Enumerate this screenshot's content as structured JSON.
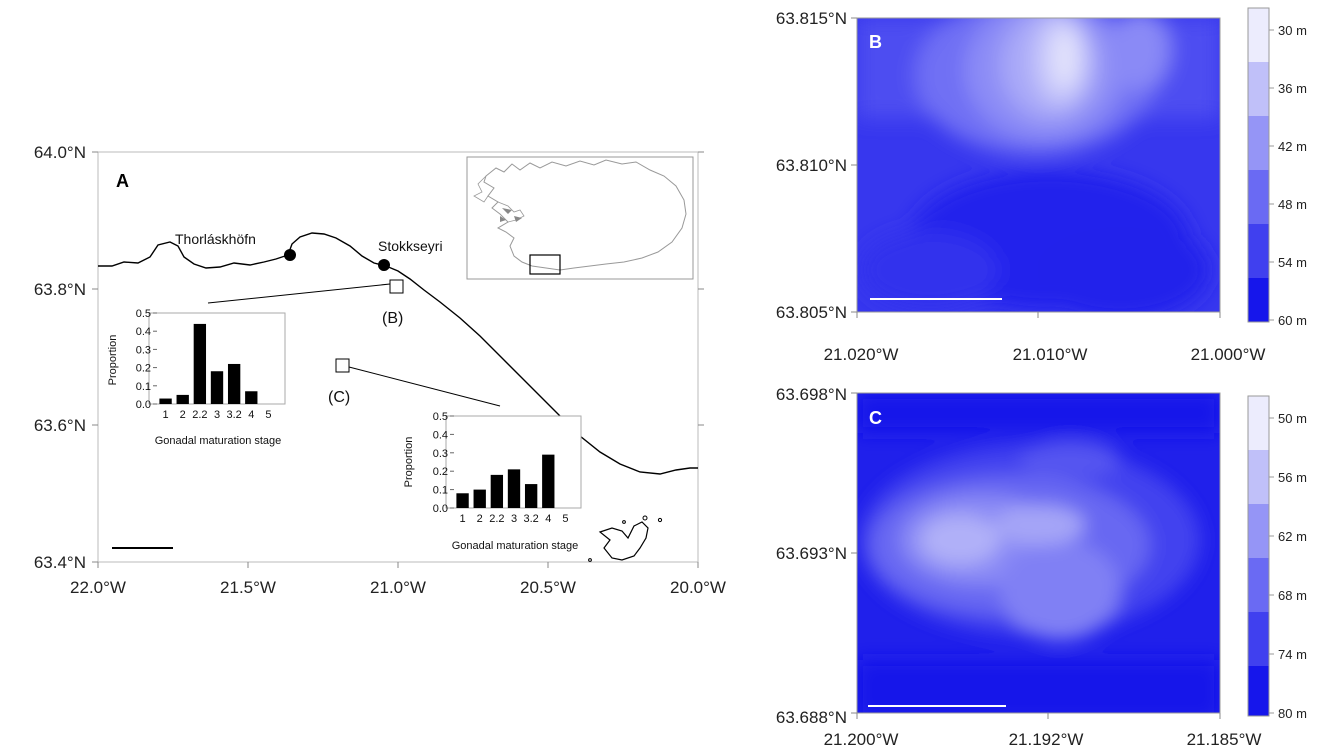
{
  "panel_a": {
    "label": "A",
    "lat_ticks": [
      "64.0°N",
      "63.8°N",
      "63.6°N",
      "63.4°N"
    ],
    "lon_ticks": [
      "22.0°W",
      "21.5°W",
      "21.0°W",
      "20.5°W",
      "20.0°W"
    ],
    "places": [
      {
        "name": "Thorláskhöfn",
        "lon": -21.36,
        "lat": 63.853
      },
      {
        "name": "Stokkseyri",
        "lon": -21.05,
        "lat": 63.835
      }
    ],
    "sites": [
      {
        "label": "(B)",
        "lon": -21.01,
        "lat": 63.805
      },
      {
        "label": "(C)",
        "lon": -21.19,
        "lat": 63.694
      }
    ]
  },
  "panel_b": {
    "label": "B",
    "lat_ticks": [
      "63.815°N",
      "63.810°N",
      "63.805°N"
    ],
    "lon_ticks": [
      "21.020°W",
      "21.010°W",
      "21.000°W"
    ],
    "colorbar": [
      "30 m",
      "36 m",
      "42 m",
      "48 m",
      "54 m",
      "60 m"
    ]
  },
  "panel_c": {
    "label": "C",
    "lat_ticks": [
      "63.698°N",
      "63.693°N",
      "63.688°N"
    ],
    "lon_ticks": [
      "21.200°W",
      "21.192°W",
      "21.185°W"
    ],
    "colorbar": [
      "50 m",
      "56 m",
      "62 m",
      "68 m",
      "74 m",
      "80 m"
    ]
  },
  "colors": {
    "deep": "#1a1aee",
    "shallow": "#e9e9fb",
    "bars": "#000000"
  },
  "chart_data": [
    {
      "type": "bar",
      "site": "(B)",
      "categories": [
        "1",
        "2",
        "2.2",
        "3",
        "3.2",
        "4",
        "5"
      ],
      "tick_labels": [
        "1",
        "2",
        "2.2",
        "3",
        "3.2",
        "4",
        "5"
      ],
      "values": [
        0.03,
        0.05,
        0.44,
        0.18,
        0.22,
        0.07,
        0
      ],
      "xlabel": "Gonadal maturation stage",
      "ylabel": "Proportion",
      "ylim": [
        0,
        0.5
      ],
      "yticks": [
        "0.0",
        "0.1",
        "0.2",
        "0.3",
        "0.4",
        "0.5"
      ]
    },
    {
      "type": "bar",
      "site": "(C)",
      "categories": [
        "1",
        "2",
        "2.2",
        "3",
        "3.2",
        "4",
        "5"
      ],
      "tick_labels": [
        "1",
        "2",
        "2.2",
        "3",
        "3.2",
        "4",
        "5"
      ],
      "values": [
        0.08,
        0.1,
        0.18,
        0.21,
        0.13,
        0.29,
        0
      ],
      "xlabel": "Gonadal maturation stage",
      "ylabel": "Proportion",
      "ylim": [
        0,
        0.5
      ],
      "yticks": [
        "0.0",
        "0.1",
        "0.2",
        "0.3",
        "0.4",
        "0.5"
      ]
    }
  ]
}
